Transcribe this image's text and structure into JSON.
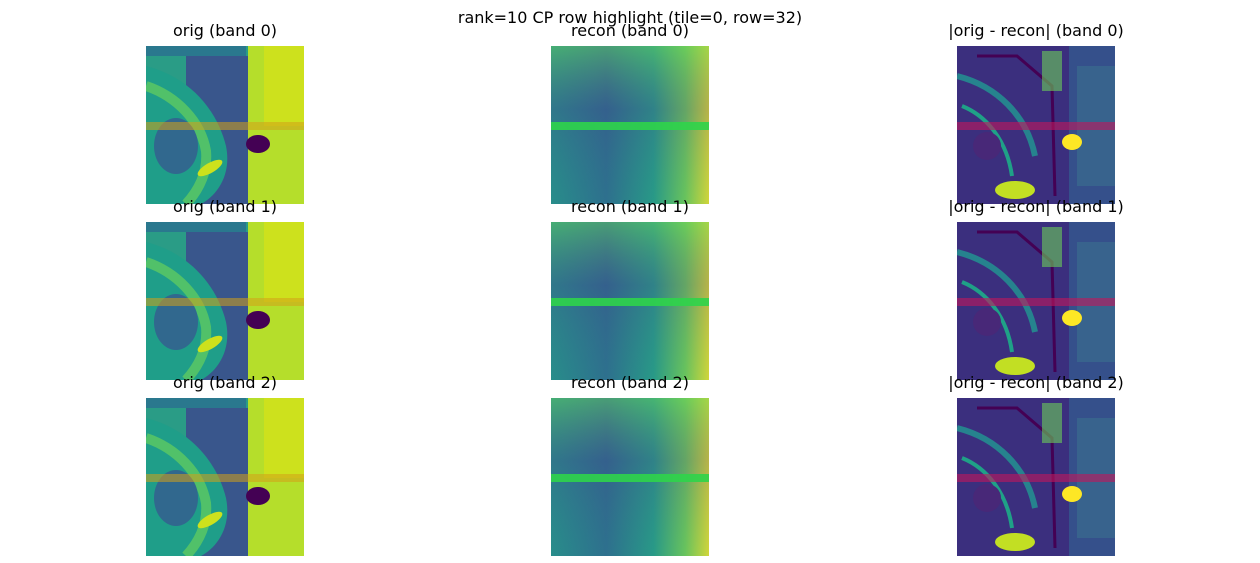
{
  "title": "rank=10 CP row highlight (tile=0, row=32)",
  "panels": [
    [
      "orig (band 0)",
      "recon (band 0)",
      "|orig - recon| (band 0)"
    ],
    [
      "orig (band 1)",
      "recon (band 1)",
      "|orig - recon| (band 1)"
    ],
    [
      "orig (band 2)",
      "recon (band 2)",
      "|orig - recon| (band 2)"
    ]
  ],
  "colors": {
    "viridis_dark": "#440154",
    "viridis_blue": "#3b528b",
    "viridis_teal": "#21918c",
    "viridis_green": "#5ec962",
    "viridis_yellow": "#fde725",
    "orig_highlight": "#d4a017",
    "recon_highlight": "#2fd44a",
    "diff_highlight": "#c2185b"
  }
}
